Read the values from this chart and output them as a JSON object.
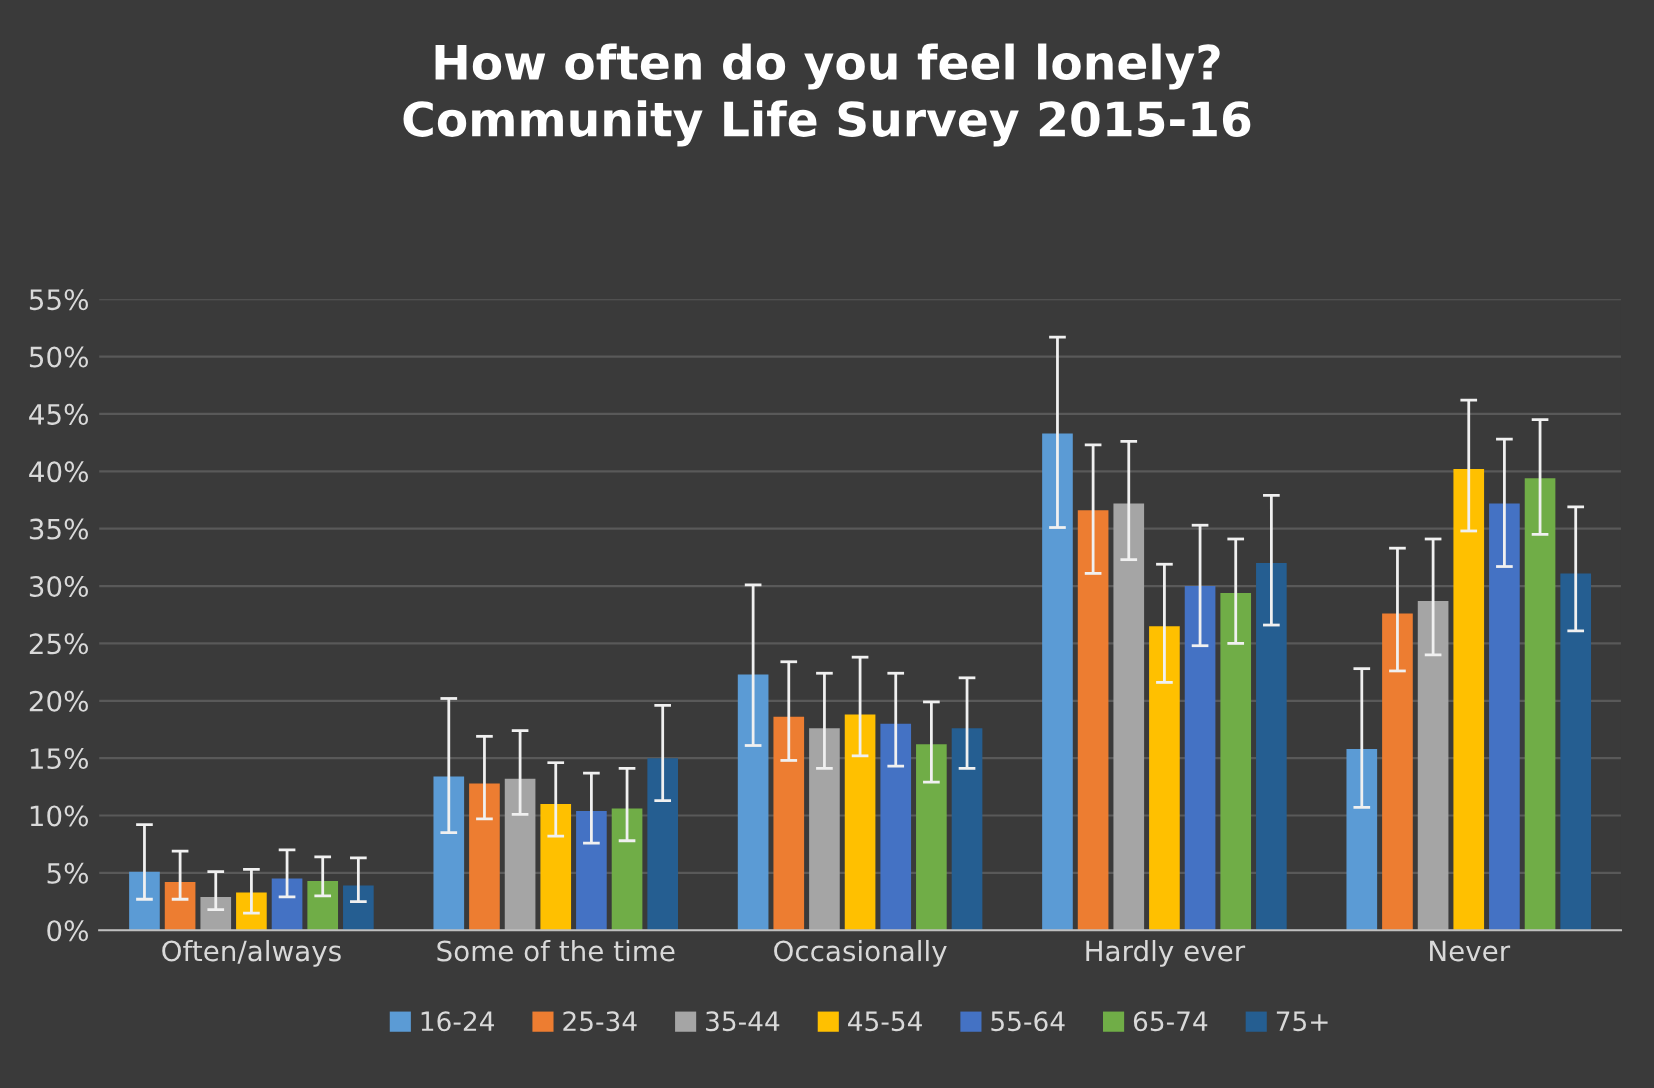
{
  "chart_data": {
    "type": "bar",
    "title": "How often do you feel lonely?\nCommunity Life Survey 2015-16",
    "categories": [
      "Often/always",
      "Some of the time",
      "Occasionally",
      "Hardly ever",
      "Never"
    ],
    "series": [
      {
        "name": "16-24",
        "color": "#5b9bd5",
        "values": [
          5.1,
          13.4,
          22.3,
          43.3,
          15.8
        ],
        "errors": [
          [
            2.7,
            9.2
          ],
          [
            8.5,
            20.2
          ],
          [
            16.1,
            30.1
          ],
          [
            35.1,
            51.7
          ],
          [
            10.7,
            22.8
          ]
        ]
      },
      {
        "name": "25-34",
        "color": "#ed7d31",
        "values": [
          4.2,
          12.8,
          18.6,
          36.6,
          27.6
        ],
        "errors": [
          [
            2.7,
            6.9
          ],
          [
            9.7,
            16.9
          ],
          [
            14.8,
            23.4
          ],
          [
            31.1,
            42.3
          ],
          [
            22.6,
            33.3
          ]
        ]
      },
      {
        "name": "35-44",
        "color": "#a5a5a5",
        "values": [
          2.9,
          13.2,
          17.6,
          37.2,
          28.7
        ],
        "errors": [
          [
            1.8,
            5.1
          ],
          [
            10.1,
            17.4
          ],
          [
            14.1,
            22.4
          ],
          [
            32.3,
            42.6
          ],
          [
            24.0,
            34.1
          ]
        ]
      },
      {
        "name": "45-54",
        "color": "#ffc000",
        "values": [
          3.3,
          11.0,
          18.8,
          26.5,
          40.2
        ],
        "errors": [
          [
            1.5,
            5.3
          ],
          [
            8.2,
            14.6
          ],
          [
            15.2,
            23.8
          ],
          [
            21.6,
            31.9
          ],
          [
            34.8,
            46.2
          ]
        ]
      },
      {
        "name": "55-64",
        "color": "#4472c4",
        "values": [
          4.5,
          10.4,
          18.0,
          30.0,
          37.2
        ],
        "errors": [
          [
            2.9,
            7.0
          ],
          [
            7.6,
            13.7
          ],
          [
            14.3,
            22.4
          ],
          [
            24.8,
            35.3
          ],
          [
            31.7,
            42.8
          ]
        ]
      },
      {
        "name": "65-74",
        "color": "#70ad47",
        "values": [
          4.3,
          10.6,
          16.2,
          29.4,
          39.4
        ],
        "errors": [
          [
            3.0,
            6.4
          ],
          [
            7.8,
            14.1
          ],
          [
            12.9,
            19.9
          ],
          [
            25.0,
            34.1
          ],
          [
            34.5,
            44.5
          ]
        ]
      },
      {
        "name": "75+",
        "color": "#255e91",
        "values": [
          3.9,
          15.0,
          17.6,
          32.0,
          31.1
        ],
        "errors": [
          [
            2.5,
            6.3
          ],
          [
            11.3,
            19.6
          ],
          [
            14.1,
            22.0
          ],
          [
            26.6,
            37.9
          ],
          [
            26.1,
            36.9
          ]
        ]
      }
    ],
    "ylim": [
      0,
      55
    ],
    "yticks": [
      {
        "value": 0,
        "label": "0%"
      },
      {
        "value": 5,
        "label": "5%"
      },
      {
        "value": 10,
        "label": "10%"
      },
      {
        "value": 15,
        "label": "15%"
      },
      {
        "value": 20,
        "label": "20%"
      },
      {
        "value": 25,
        "label": "25%"
      },
      {
        "value": 30,
        "label": "30%"
      },
      {
        "value": 35,
        "label": "35%"
      },
      {
        "value": 40,
        "label": "40%"
      },
      {
        "value": 45,
        "label": "45%"
      },
      {
        "value": 50,
        "label": "50%"
      },
      {
        "value": 55,
        "label": "55%"
      }
    ],
    "grid": "y",
    "legend": "bottom"
  }
}
